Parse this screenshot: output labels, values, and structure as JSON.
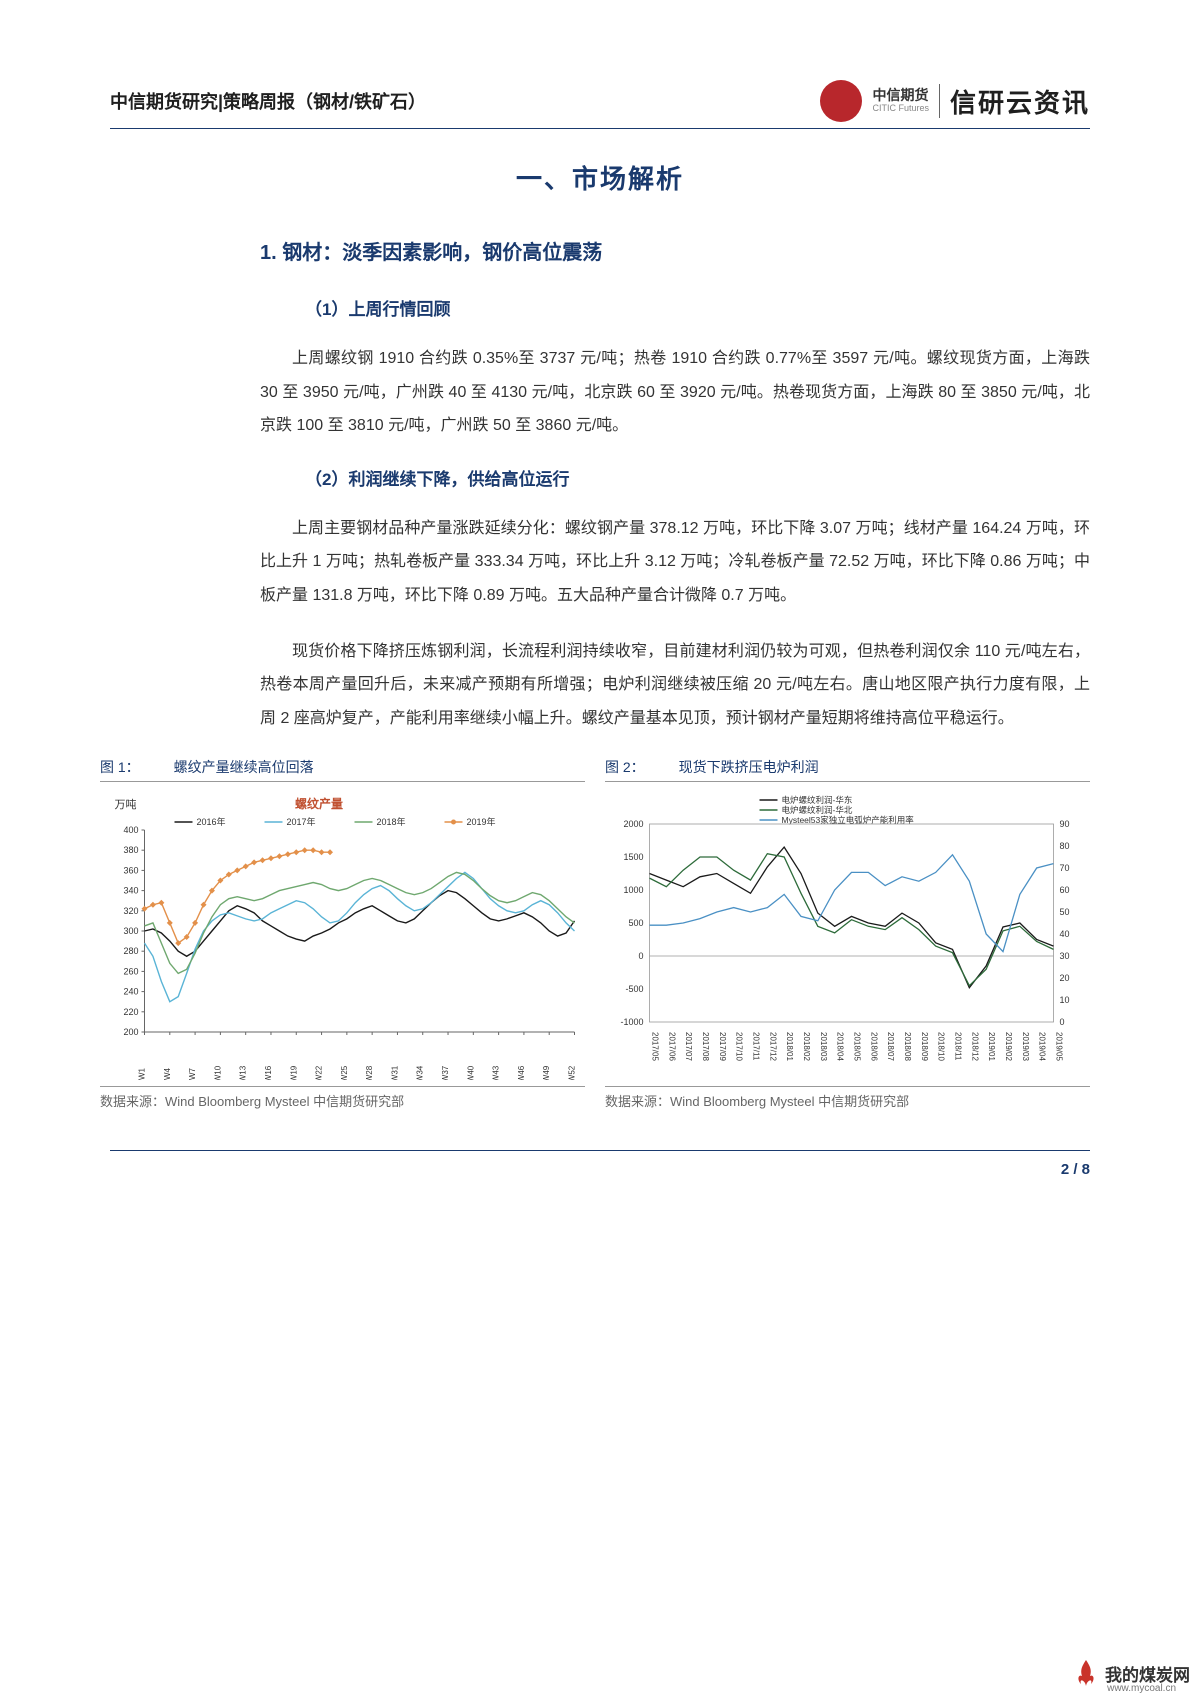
{
  "header": {
    "left": "中信期货研究|策略周报（钢材/铁矿石）",
    "logo_main": "中信期货",
    "logo_sub": "CITIC Futures",
    "brand": "信研云资讯"
  },
  "section": {
    "title": "一、市场解析",
    "sub1": "1. 钢材：淡季因素影响，钢价高位震荡",
    "h1": "（1）上周行情回顾",
    "p1": "上周螺纹钢 1910 合约跌 0.35%至 3737 元/吨；热卷 1910 合约跌 0.77%至 3597 元/吨。螺纹现货方面，上海跌 30 至 3950 元/吨，广州跌 40 至 4130 元/吨，北京跌 60 至 3920 元/吨。热卷现货方面，上海跌 80 至 3850 元/吨，北京跌 100 至 3810 元/吨，广州跌 50 至 3860 元/吨。",
    "h2": "（2）利润继续下降，供给高位运行",
    "p2": "上周主要钢材品种产量涨跌延续分化：螺纹钢产量 378.12 万吨，环比下降 3.07 万吨；线材产量 164.24 万吨，环比上升 1 万吨；热轧卷板产量 333.34 万吨，环比上升 3.12 万吨；冷轧卷板产量 72.52 万吨，环比下降 0.86 万吨；中板产量 131.8 万吨，环比下降 0.89 万吨。五大品种产量合计微降 0.7 万吨。",
    "p3": "现货价格下降挤压炼钢利润，长流程利润持续收窄，目前建材利润仍较为可观，但热卷利润仅余 110 元/吨左右，热卷本周产量回升后，未来减产预期有所增强；电炉利润继续被压缩 20 元/吨左右。唐山地区限产执行力度有限，上周 2 座高炉复产，产能利用率继续小幅上升。螺纹产量基本见顶，预计钢材产量短期将维持高位平稳运行。"
  },
  "chart1": {
    "label": "图 1：",
    "title": "螺纹产量继续高位回落",
    "unit": "万吨",
    "chart_title": "螺纹产量",
    "legend": [
      "2016年",
      "2017年",
      "2018年",
      "2019年"
    ],
    "legend_colors": [
      "#1a1a1a",
      "#5ab4d6",
      "#6fa86f",
      "#e3904a"
    ],
    "ylim": [
      200,
      400
    ],
    "ytick_step": 20,
    "xlabels": [
      "W1",
      "W4",
      "W7",
      "W10",
      "W13",
      "W16",
      "W19",
      "W22",
      "W25",
      "W28",
      "W31",
      "W34",
      "W37",
      "W40",
      "W43",
      "W46",
      "W49",
      "W52"
    ],
    "series": {
      "2016": [
        300,
        302,
        298,
        290,
        280,
        275,
        280,
        290,
        300,
        310,
        320,
        325,
        322,
        318,
        310,
        305,
        300,
        295,
        292,
        290,
        295,
        298,
        302,
        308,
        312,
        318,
        322,
        325,
        320,
        315,
        310,
        308,
        312,
        320,
        328,
        335,
        340,
        338,
        332,
        325,
        318,
        312,
        310,
        312,
        315,
        318,
        314,
        308,
        300,
        295,
        298,
        310
      ],
      "2017": [
        288,
        275,
        250,
        230,
        235,
        258,
        282,
        300,
        310,
        316,
        318,
        315,
        312,
        310,
        312,
        318,
        322,
        326,
        330,
        328,
        322,
        314,
        308,
        310,
        318,
        328,
        336,
        342,
        345,
        340,
        332,
        325,
        320,
        322,
        328,
        336,
        344,
        352,
        358,
        352,
        342,
        332,
        325,
        320,
        318,
        320,
        326,
        330,
        326,
        318,
        308,
        300
      ],
      "2018": [
        305,
        308,
        288,
        268,
        258,
        262,
        278,
        298,
        314,
        326,
        332,
        334,
        332,
        330,
        332,
        336,
        340,
        342,
        344,
        346,
        348,
        346,
        342,
        340,
        342,
        346,
        350,
        352,
        350,
        346,
        342,
        338,
        336,
        338,
        342,
        348,
        354,
        358,
        356,
        350,
        342,
        335,
        330,
        328,
        330,
        334,
        338,
        336,
        330,
        322,
        314,
        308
      ],
      "2019": [
        322,
        326,
        328,
        308,
        288,
        294,
        308,
        326,
        340,
        350,
        356,
        360,
        364,
        368,
        370,
        372,
        374,
        376,
        378,
        380,
        380,
        378,
        378
      ]
    },
    "source": "数据来源：Wind Bloomberg Mysteel 中信期货研究部",
    "background_color": "#ffffff",
    "axis_color": "#666666",
    "text_color": "#333333",
    "fontsize": 10
  },
  "chart2": {
    "label": "图 2：",
    "title": "现货下跌挤压电炉利润",
    "legend": [
      "电炉螺纹利润-华东",
      "电炉螺纹利润-华北",
      "Mysteel53家独立电弧炉产能利用率"
    ],
    "legend_colors": [
      "#1a1a1a",
      "#2d6b3a",
      "#4a90c4"
    ],
    "ylim_left": [
      -1000,
      2000
    ],
    "ytick_left_step": 500,
    "ylim_right": [
      0,
      90
    ],
    "ytick_right_step": 10,
    "xlabels": [
      "2017/05",
      "2017/06",
      "2017/07",
      "2017/08",
      "2017/09",
      "2017/10",
      "2017/11",
      "2017/12",
      "2018/01",
      "2018/02",
      "2018/03",
      "2018/04",
      "2018/05",
      "2018/06",
      "2018/07",
      "2018/08",
      "2018/09",
      "2018/10",
      "2018/11",
      "2018/12",
      "2019/01",
      "2019/02",
      "2019/03",
      "2019/04",
      "2019/05"
    ],
    "series": {
      "huadong": [
        1250,
        1150,
        1050,
        1200,
        1250,
        1100,
        950,
        1350,
        1650,
        1250,
        650,
        450,
        600,
        500,
        450,
        650,
        500,
        200,
        100,
        -480,
        -150,
        440,
        500,
        250,
        150
      ],
      "huabei": [
        1180,
        1050,
        1300,
        1500,
        1500,
        1300,
        1150,
        1550,
        1500,
        950,
        450,
        350,
        550,
        450,
        400,
        580,
        400,
        150,
        50,
        -450,
        -200,
        380,
        450,
        220,
        100
      ],
      "util": [
        44,
        44,
        45,
        47,
        50,
        52,
        50,
        52,
        58,
        48,
        46,
        60,
        68,
        68,
        62,
        66,
        64,
        68,
        76,
        64,
        40,
        32,
        58,
        70,
        72
      ]
    },
    "source": "数据来源：Wind Bloomberg Mysteel 中信期货研究部",
    "background_color": "#ffffff"
  },
  "footer": {
    "page": "2 / 8"
  },
  "watermark": {
    "text": "我的煤炭网",
    "url": "www.mycoal.cn"
  }
}
